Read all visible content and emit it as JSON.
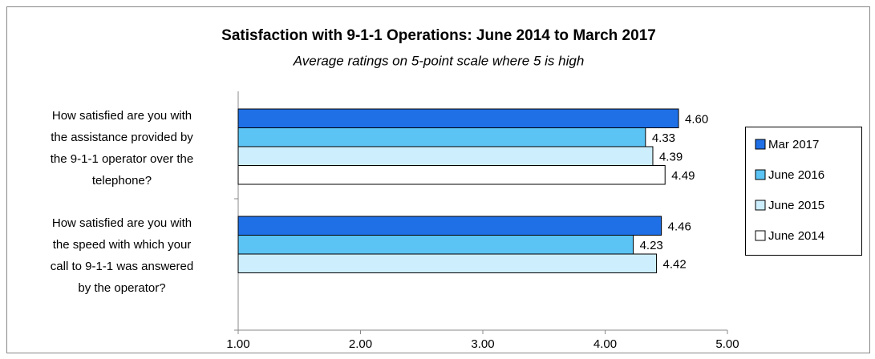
{
  "chart_data": {
    "type": "barh",
    "title": "Satisfaction with 9-1-1 Operations:  June 2014 to March 2017",
    "subtitle": "Average ratings on 5-point scale where 5 is high",
    "categories": [
      [
        "How satisfied are you with",
        "the assistance provided by",
        "the 9-1-1 operator over the",
        "telephone?"
      ],
      [
        "How satisfied are you with",
        "the speed with which your",
        "call to 9-1-1 was answered",
        "by the operator?"
      ]
    ],
    "series": [
      {
        "name": "Mar 2017",
        "color": "#1f6fe6",
        "values": [
          4.6,
          4.46
        ],
        "value_labels": [
          "4.60",
          "4.46"
        ]
      },
      {
        "name": "June 2016",
        "color": "#5bc4f5",
        "values": [
          4.33,
          4.23
        ],
        "value_labels": [
          "4.33",
          "4.23"
        ]
      },
      {
        "name": "June 2015",
        "color": "#cdeefc",
        "values": [
          4.39,
          4.42
        ],
        "value_labels": [
          "4.39",
          "4.42"
        ]
      },
      {
        "name": "June 2014",
        "color": "#ffffff",
        "values": [
          4.49,
          null
        ],
        "value_labels": [
          "4.49",
          null
        ]
      }
    ],
    "xlim": [
      1,
      5
    ],
    "xticks": [
      {
        "value": 1,
        "label": "1.00"
      },
      {
        "value": 2,
        "label": "2.00"
      },
      {
        "value": 3,
        "label": "3.00"
      },
      {
        "value": 4,
        "label": "4.00"
      },
      {
        "value": 5,
        "label": "5.00"
      }
    ],
    "legend": "right"
  }
}
